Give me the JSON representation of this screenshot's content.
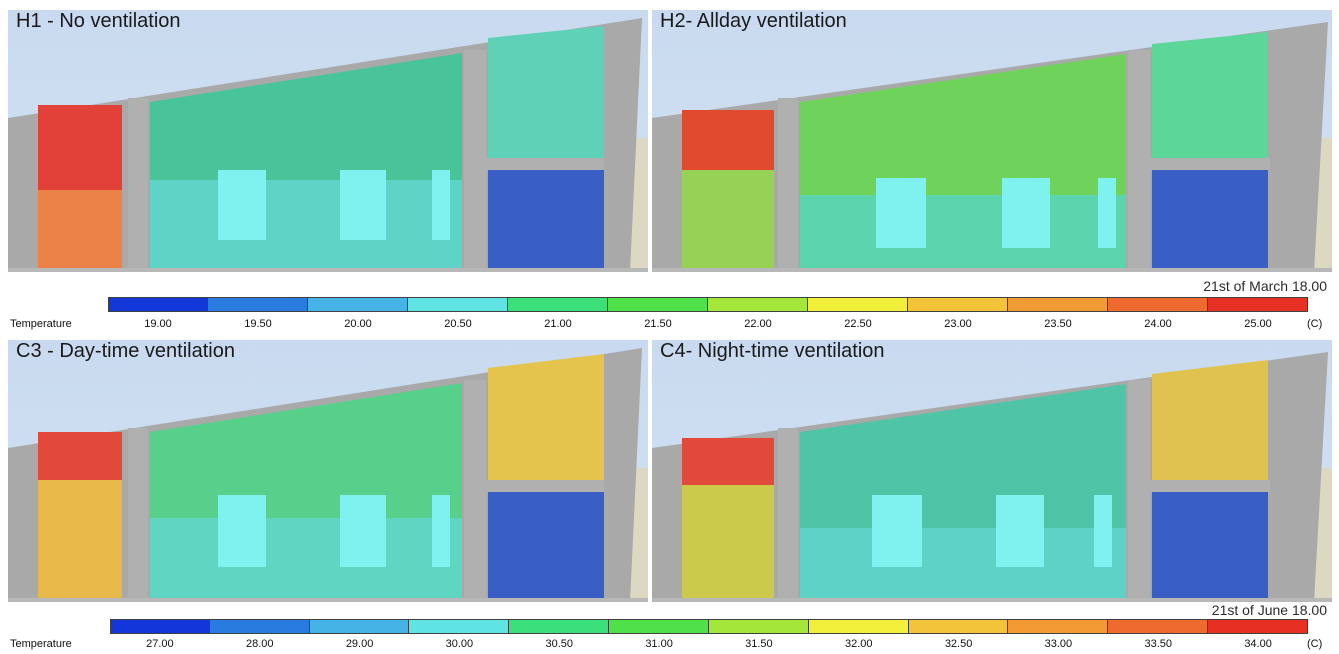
{
  "panels": [
    {
      "id": "h1",
      "title": "H1 - No ventilation",
      "colors": {
        "left_room_top": "#e2413a",
        "left_room_bottom": "#ee8a4a",
        "main_room_top": "#49c49a",
        "main_room_bottom": "#63d8cf",
        "attic_room": "#5fd1b6",
        "lower_right_room": "#3a5fc4"
      }
    },
    {
      "id": "h2",
      "title": "H2- Allday ventilation",
      "colors": {
        "left_room_top": "#e24a30",
        "left_room_bottom": "#8fe05a",
        "main_room_top": "#6fd25a",
        "main_room_bottom": "#58d6c3",
        "attic_room": "#5dd69a",
        "lower_right_room": "#3a5fc4"
      }
    },
    {
      "id": "c3",
      "title": "C3 - Day-time ventilation",
      "colors": {
        "left_room_top": "#e2493a",
        "left_room_bottom": "#e9c44a",
        "main_room_top": "#58d08c",
        "main_room_bottom": "#63d6cf",
        "attic_room": "#e4c44c",
        "lower_right_room": "#3a5fc4"
      }
    },
    {
      "id": "c4",
      "title": "C4- Night-time ventilation",
      "colors": {
        "left_room_top": "#e2493a",
        "left_room_bottom": "#c9d84e",
        "main_room_top": "#4fc4a6",
        "main_room_bottom": "#63d6cf",
        "attic_room": "#e0c24e",
        "lower_right_room": "#3a5fc4"
      }
    }
  ],
  "scales": [
    {
      "id": "march",
      "date": "21st of March 18.00",
      "label": "Temperature",
      "unit": "(C)",
      "ticks": [
        "19.00",
        "19.50",
        "20.00",
        "20.50",
        "21.00",
        "21.50",
        "22.00",
        "22.50",
        "23.00",
        "23.50",
        "24.00",
        "25.00"
      ]
    },
    {
      "id": "june",
      "date": "21st of June 18.00",
      "label": "Temperature",
      "unit": "(C)",
      "ticks": [
        "27.00",
        "28.00",
        "29.00",
        "30.00",
        "30.50",
        "31.00",
        "31.50",
        "32.00",
        "32.50",
        "33.00",
        "33.50",
        "34.00"
      ]
    }
  ],
  "legend_colors": [
    "#1236d8",
    "#2a7be0",
    "#46b3e6",
    "#5fe3e3",
    "#3ce07a",
    "#4fe04a",
    "#a5e63a",
    "#f2f03a",
    "#f3c43a",
    "#f29a34",
    "#ef6a2e",
    "#e63024"
  ]
}
